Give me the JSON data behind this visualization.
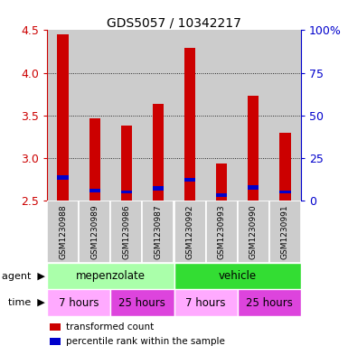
{
  "title": "GDS5057 / 10342217",
  "samples": [
    "GSM1230988",
    "GSM1230989",
    "GSM1230986",
    "GSM1230987",
    "GSM1230992",
    "GSM1230993",
    "GSM1230990",
    "GSM1230991"
  ],
  "transformed_counts": [
    4.45,
    3.47,
    3.38,
    3.63,
    4.29,
    2.94,
    3.73,
    3.3
  ],
  "percentile_bottoms": [
    2.74,
    2.6,
    2.58,
    2.62,
    2.72,
    2.54,
    2.63,
    2.58
  ],
  "blue_heights": [
    0.06,
    0.04,
    0.04,
    0.05,
    0.05,
    0.04,
    0.05,
    0.04
  ],
  "ymin": 2.5,
  "ymax": 4.5,
  "red_color": "#cc0000",
  "blue_color": "#0000cc",
  "yticks_left": [
    2.5,
    3.0,
    3.5,
    4.0,
    4.5
  ],
  "yticks_right": [
    0,
    25,
    50,
    75,
    100
  ],
  "agent_groups": [
    {
      "label": "mepenzolate",
      "start": 0,
      "end": 4,
      "color": "#aaffaa"
    },
    {
      "label": "vehicle",
      "start": 4,
      "end": 8,
      "color": "#33dd33"
    }
  ],
  "time_groups": [
    {
      "label": "7 hours",
      "start": 0,
      "end": 2,
      "color": "#ffaaff"
    },
    {
      "label": "25 hours",
      "start": 2,
      "end": 4,
      "color": "#dd44dd"
    },
    {
      "label": "7 hours",
      "start": 4,
      "end": 6,
      "color": "#ffaaff"
    },
    {
      "label": "25 hours",
      "start": 6,
      "end": 8,
      "color": "#dd44dd"
    }
  ],
  "legend_items": [
    {
      "label": "transformed count",
      "color": "#cc0000"
    },
    {
      "label": "percentile rank within the sample",
      "color": "#0000cc"
    }
  ],
  "bar_width": 0.35,
  "tick_color_left": "#cc0000",
  "tick_color_right": "#0000cc",
  "bg_sample_color": "#cccccc",
  "label_agent": "agent",
  "label_time": "time"
}
